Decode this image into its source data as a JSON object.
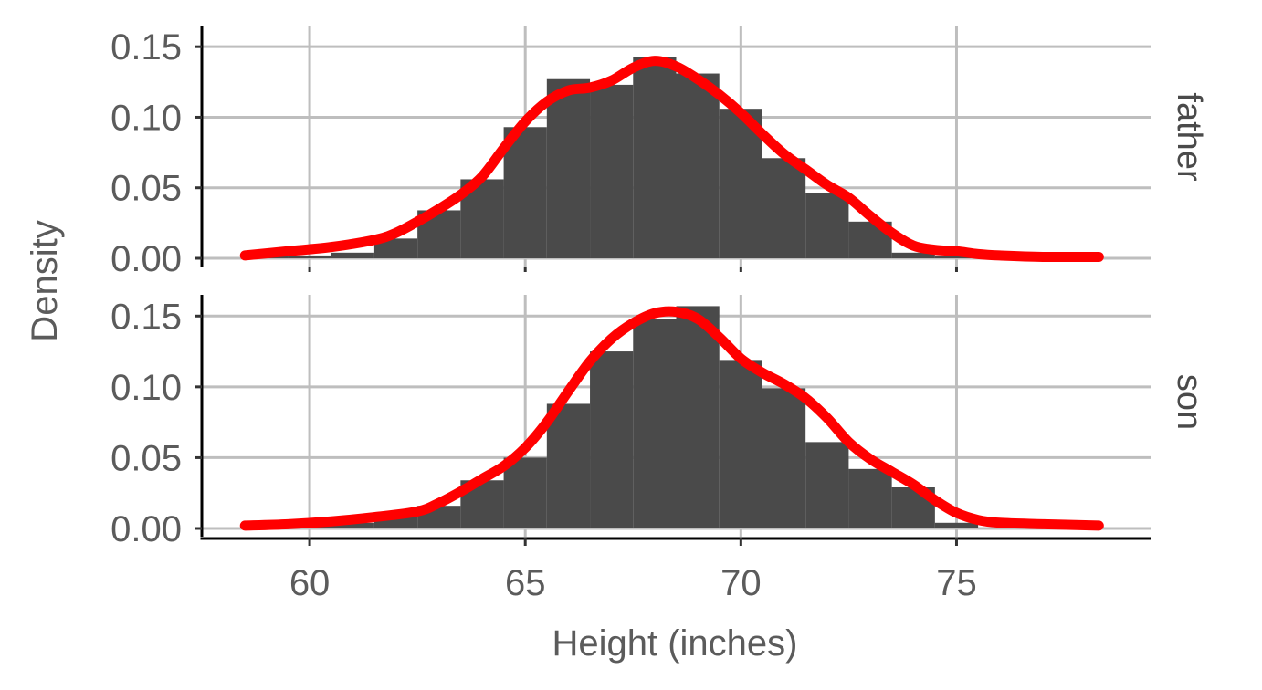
{
  "chart_data": {
    "type": "histogram",
    "xlabel": "Height (inches)",
    "ylabel": "Density",
    "xlim": [
      57.5,
      79.5
    ],
    "ylim": [
      0,
      0.165
    ],
    "x_ticks": [
      60,
      65,
      70,
      75
    ],
    "x_tick_labels": [
      "60",
      "65",
      "70",
      "75"
    ],
    "y_ticks": [
      0,
      0.05,
      0.1,
      0.15
    ],
    "y_tick_labels": [
      "0.00",
      "0.05",
      "0.10",
      "0.15"
    ],
    "grid": true,
    "bin_width": 1,
    "density_line_color": "#ff0000",
    "bar_color": "#4a4a4a",
    "panels": [
      {
        "strip": "father",
        "bins": [
          {
            "x0": 58.5,
            "x1": 59.5,
            "density": 0.002
          },
          {
            "x0": 59.5,
            "x1": 60.5,
            "density": 0.002
          },
          {
            "x0": 60.5,
            "x1": 61.5,
            "density": 0.004
          },
          {
            "x0": 61.5,
            "x1": 62.5,
            "density": 0.014
          },
          {
            "x0": 62.5,
            "x1": 63.5,
            "density": 0.034
          },
          {
            "x0": 63.5,
            "x1": 64.5,
            "density": 0.056
          },
          {
            "x0": 64.5,
            "x1": 65.5,
            "density": 0.093
          },
          {
            "x0": 65.5,
            "x1": 66.5,
            "density": 0.127
          },
          {
            "x0": 66.5,
            "x1": 67.5,
            "density": 0.123
          },
          {
            "x0": 67.5,
            "x1": 68.5,
            "density": 0.143
          },
          {
            "x0": 68.5,
            "x1": 69.5,
            "density": 0.131
          },
          {
            "x0": 69.5,
            "x1": 70.5,
            "density": 0.106
          },
          {
            "x0": 70.5,
            "x1": 71.5,
            "density": 0.071
          },
          {
            "x0": 71.5,
            "x1": 72.5,
            "density": 0.046
          },
          {
            "x0": 72.5,
            "x1": 73.5,
            "density": 0.026
          },
          {
            "x0": 73.5,
            "x1": 74.5,
            "density": 0.004
          },
          {
            "x0": 74.5,
            "x1": 75.5,
            "density": 0.002
          }
        ],
        "density_curve": {
          "x": [
            58.5,
            59.5,
            60.5,
            61.5,
            62,
            62.5,
            63,
            63.5,
            64,
            64.5,
            65,
            65.5,
            66,
            66.5,
            67,
            67.5,
            68,
            68.5,
            69,
            69.5,
            70,
            70.5,
            71,
            71.5,
            72,
            72.5,
            73,
            73.5,
            74,
            74.5,
            75,
            75.5,
            76,
            77,
            78.3
          ],
          "y": [
            0.002,
            0.005,
            0.008,
            0.013,
            0.018,
            0.026,
            0.035,
            0.045,
            0.058,
            0.078,
            0.097,
            0.111,
            0.119,
            0.121,
            0.126,
            0.135,
            0.14,
            0.136,
            0.127,
            0.116,
            0.103,
            0.088,
            0.074,
            0.063,
            0.052,
            0.043,
            0.03,
            0.018,
            0.009,
            0.006,
            0.005,
            0.003,
            0.002,
            0.001,
            0.001
          ]
        }
      },
      {
        "strip": "son",
        "bins": [
          {
            "x0": 58.5,
            "x1": 59.5,
            "density": 0.002
          },
          {
            "x0": 59.5,
            "x1": 60.5,
            "density": 0.002
          },
          {
            "x0": 60.5,
            "x1": 61.5,
            "density": 0.004
          },
          {
            "x0": 61.5,
            "x1": 62.5,
            "density": 0.008
          },
          {
            "x0": 62.5,
            "x1": 63.5,
            "density": 0.016
          },
          {
            "x0": 63.5,
            "x1": 64.5,
            "density": 0.034
          },
          {
            "x0": 64.5,
            "x1": 65.5,
            "density": 0.05
          },
          {
            "x0": 65.5,
            "x1": 66.5,
            "density": 0.088
          },
          {
            "x0": 66.5,
            "x1": 67.5,
            "density": 0.125
          },
          {
            "x0": 67.5,
            "x1": 68.5,
            "density": 0.148
          },
          {
            "x0": 68.5,
            "x1": 69.5,
            "density": 0.157
          },
          {
            "x0": 69.5,
            "x1": 70.5,
            "density": 0.119
          },
          {
            "x0": 70.5,
            "x1": 71.5,
            "density": 0.099
          },
          {
            "x0": 71.5,
            "x1": 72.5,
            "density": 0.061
          },
          {
            "x0": 72.5,
            "x1": 73.5,
            "density": 0.042
          },
          {
            "x0": 73.5,
            "x1": 74.5,
            "density": 0.029
          },
          {
            "x0": 74.5,
            "x1": 75.5,
            "density": 0.004
          }
        ],
        "density_curve": {
          "x": [
            58.5,
            59.5,
            60.5,
            61.5,
            62.5,
            63,
            63.5,
            64,
            64.5,
            65,
            65.5,
            66,
            66.5,
            67,
            67.5,
            68,
            68.5,
            69,
            69.5,
            70,
            70.5,
            71,
            71.5,
            72,
            72.5,
            73,
            73.5,
            74,
            74.5,
            75,
            75.5,
            76,
            77,
            78.3
          ],
          "y": [
            0.002,
            0.003,
            0.005,
            0.008,
            0.012,
            0.018,
            0.026,
            0.035,
            0.044,
            0.057,
            0.075,
            0.097,
            0.118,
            0.134,
            0.145,
            0.152,
            0.153,
            0.148,
            0.135,
            0.12,
            0.11,
            0.102,
            0.092,
            0.078,
            0.061,
            0.049,
            0.04,
            0.031,
            0.02,
            0.011,
            0.006,
            0.004,
            0.003,
            0.002
          ]
        }
      }
    ]
  }
}
